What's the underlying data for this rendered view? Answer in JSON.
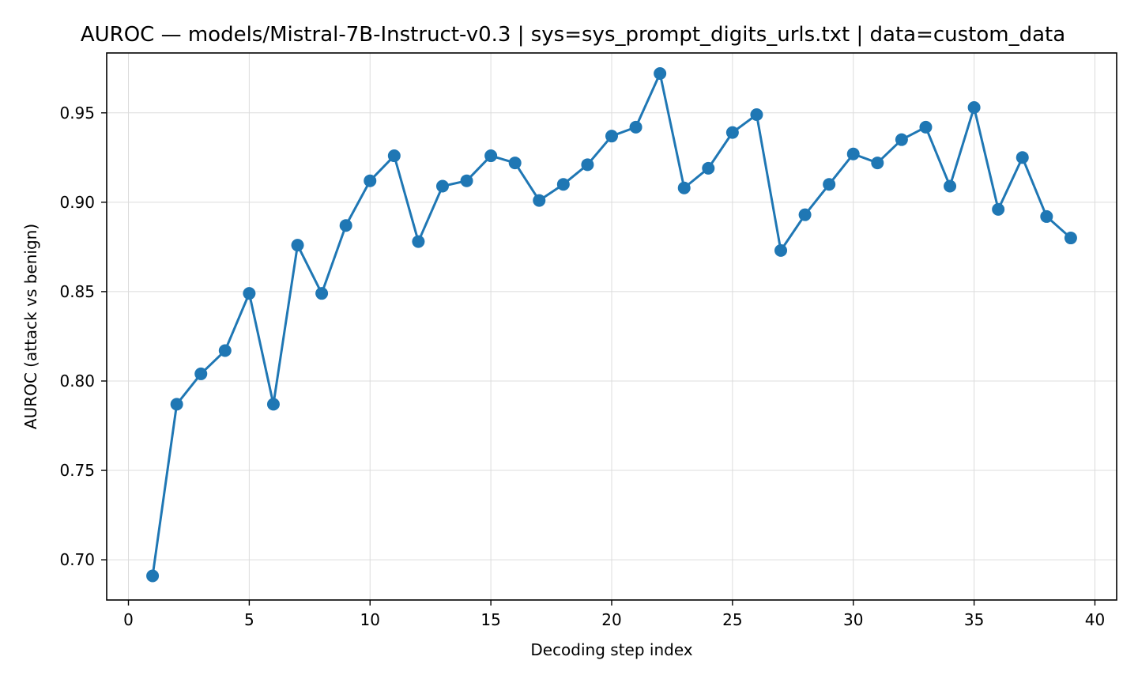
{
  "chart_data": {
    "type": "line",
    "title": "AUROC — models/Mistral-7B-Instruct-v0.3 | sys=sys_prompt_digits_urls.txt | data=custom_data",
    "xlabel": "Decoding step index",
    "ylabel": "AUROC (attack vs benign)",
    "xlim": [
      -0.9,
      40.9
    ],
    "ylim": [
      0.6775,
      0.9835
    ],
    "xticks": [
      0,
      5,
      10,
      15,
      20,
      25,
      30,
      35,
      40
    ],
    "xtick_labels": [
      "0",
      "5",
      "10",
      "15",
      "20",
      "25",
      "30",
      "35",
      "40"
    ],
    "yticks": [
      0.7,
      0.75,
      0.8,
      0.85,
      0.9,
      0.95
    ],
    "ytick_labels": [
      "0.70",
      "0.75",
      "0.80",
      "0.85",
      "0.90",
      "0.95"
    ],
    "grid": true,
    "color": "#1f77b4",
    "marker": "circle",
    "series": [
      {
        "x": [
          1,
          2,
          3,
          4,
          5,
          6,
          7,
          8,
          9,
          10,
          11,
          12,
          13,
          14,
          15,
          16,
          17,
          18,
          19,
          20,
          21,
          22,
          23,
          24,
          25,
          26,
          27,
          28,
          29,
          30,
          31,
          32,
          33,
          34,
          35,
          36,
          37,
          38,
          39
        ],
        "values": [
          0.691,
          0.787,
          0.804,
          0.817,
          0.849,
          0.787,
          0.876,
          0.849,
          0.887,
          0.912,
          0.926,
          0.878,
          0.909,
          0.912,
          0.926,
          0.922,
          0.901,
          0.91,
          0.921,
          0.937,
          0.942,
          0.972,
          0.908,
          0.919,
          0.939,
          0.949,
          0.873,
          0.893,
          0.91,
          0.927,
          0.922,
          0.935,
          0.942,
          0.909,
          0.953,
          0.896,
          0.925,
          0.892,
          0.88
        ]
      }
    ]
  }
}
